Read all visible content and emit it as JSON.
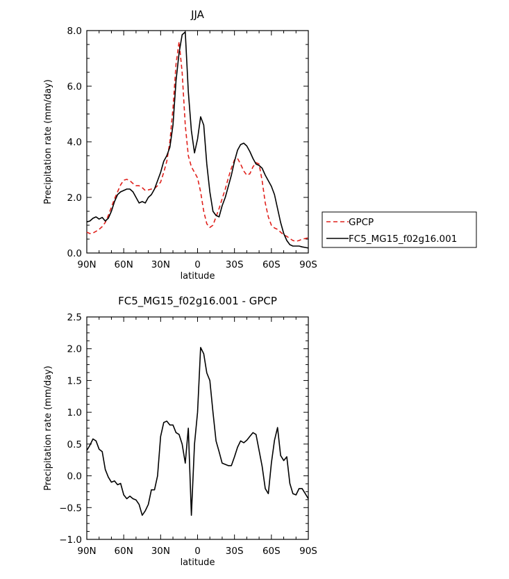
{
  "colors": {
    "gpcp": "#e0201b",
    "model": "#000000",
    "frame": "#000000"
  },
  "chart_data": [
    {
      "type": "line",
      "title": "JJA",
      "xlabel": "latitude",
      "ylabel": "Precipitation rate (mm/day)",
      "xlim": [
        90,
        -90
      ],
      "ylim": [
        0,
        8
      ],
      "xtick_values": [
        90,
        60,
        30,
        0,
        -30,
        -60,
        -90
      ],
      "xtick_labels": [
        "90N",
        "60N",
        "30N",
        "0",
        "30S",
        "60S",
        "90S"
      ],
      "ytick_values": [
        0,
        2,
        4,
        6,
        8
      ],
      "ytick_labels": [
        "0.0",
        "2.0",
        "4.0",
        "6.0",
        "8.0"
      ],
      "legend": {
        "placement": "right-middle",
        "entries": [
          "GPCP",
          "FC5_MG15_f02g16.001"
        ]
      },
      "series": [
        {
          "name": "GPCP",
          "style": "dashed",
          "color": "#e0201b",
          "x": [
            90,
            87.5,
            85,
            82.5,
            80,
            77.5,
            75,
            72.5,
            70,
            67.5,
            65,
            62.5,
            60,
            57.5,
            55,
            52.5,
            50,
            47.5,
            45,
            42.5,
            40,
            37.5,
            35,
            32.5,
            30,
            27.5,
            25,
            22.5,
            20,
            17.5,
            15,
            12.5,
            10,
            7.5,
            5,
            2.5,
            0,
            -2.5,
            -5,
            -7.5,
            -10,
            -12.5,
            -15,
            -17.5,
            -20,
            -22.5,
            -25,
            -27.5,
            -30,
            -32.5,
            -35,
            -37.5,
            -40,
            -42.5,
            -45,
            -47.5,
            -50,
            -52.5,
            -55,
            -57.5,
            -60,
            -62.5,
            -65,
            -67.5,
            -70,
            -72.5,
            -75,
            -77.5,
            -80,
            -82.5,
            -85,
            -87.5,
            -90
          ],
          "values": [
            0.75,
            0.7,
            0.72,
            0.78,
            0.85,
            0.95,
            1.1,
            1.35,
            1.65,
            1.95,
            2.2,
            2.45,
            2.62,
            2.65,
            2.6,
            2.5,
            2.42,
            2.42,
            2.35,
            2.25,
            2.27,
            2.3,
            2.32,
            2.42,
            2.55,
            2.9,
            3.3,
            4.0,
            5.2,
            6.8,
            7.6,
            6.5,
            4.6,
            3.5,
            3.1,
            2.9,
            2.7,
            2.2,
            1.5,
            1.05,
            0.92,
            1.0,
            1.3,
            1.6,
            1.95,
            2.3,
            2.7,
            3.05,
            3.35,
            3.4,
            3.2,
            2.95,
            2.8,
            2.85,
            3.1,
            3.25,
            3.2,
            2.6,
            1.8,
            1.3,
            1.0,
            0.9,
            0.85,
            0.75,
            0.65,
            0.6,
            0.52,
            0.45,
            0.42,
            0.45,
            0.5,
            0.52,
            0.55
          ]
        },
        {
          "name": "FC5_MG15_f02g16.001",
          "style": "solid",
          "color": "#000000",
          "x": [
            90,
            87.5,
            85,
            82.5,
            80,
            77.5,
            75,
            72.5,
            70,
            67.5,
            65,
            62.5,
            60,
            57.5,
            55,
            52.5,
            50,
            47.5,
            45,
            42.5,
            40,
            37.5,
            35,
            32.5,
            30,
            27.5,
            25,
            22.5,
            20,
            17.5,
            15,
            12.5,
            10,
            7.5,
            5,
            2.5,
            0,
            -2.5,
            -5,
            -7.5,
            -10,
            -12.5,
            -15,
            -17.5,
            -20,
            -22.5,
            -25,
            -27.5,
            -30,
            -32.5,
            -35,
            -37.5,
            -40,
            -42.5,
            -45,
            -47.5,
            -50,
            -52.5,
            -55,
            -57.5,
            -60,
            -62.5,
            -65,
            -67.5,
            -70,
            -72.5,
            -75,
            -77.5,
            -80,
            -82.5,
            -85,
            -87.5,
            -90
          ],
          "values": [
            1.12,
            1.15,
            1.25,
            1.3,
            1.22,
            1.28,
            1.15,
            1.25,
            1.5,
            1.85,
            2.1,
            2.2,
            2.25,
            2.3,
            2.3,
            2.2,
            2.0,
            1.8,
            1.85,
            1.8,
            2.0,
            2.1,
            2.3,
            2.6,
            2.9,
            3.3,
            3.5,
            3.8,
            4.6,
            6.2,
            7.2,
            7.85,
            7.95,
            5.8,
            4.4,
            3.6,
            4.1,
            4.9,
            4.6,
            3.2,
            2.2,
            1.5,
            1.35,
            1.3,
            1.7,
            2.0,
            2.4,
            2.8,
            3.3,
            3.7,
            3.9,
            3.95,
            3.85,
            3.65,
            3.4,
            3.2,
            3.15,
            3.05,
            2.8,
            2.6,
            2.4,
            2.1,
            1.6,
            1.1,
            0.7,
            0.45,
            0.3,
            0.25,
            0.25,
            0.25,
            0.22,
            0.2,
            0.18
          ]
        }
      ]
    },
    {
      "type": "line",
      "title": "FC5_MG15_f02g16.001 - GPCP",
      "xlabel": "latitude",
      "ylabel": "Precipitation rate (mm/day)",
      "xlim": [
        90,
        -90
      ],
      "ylim": [
        -1,
        2.5
      ],
      "xtick_values": [
        90,
        60,
        30,
        0,
        -30,
        -60,
        -90
      ],
      "xtick_labels": [
        "90N",
        "60N",
        "30N",
        "0",
        "30S",
        "60S",
        "90S"
      ],
      "ytick_values": [
        -1,
        -0.5,
        0,
        0.5,
        1,
        1.5,
        2,
        2.5
      ],
      "ytick_labels": [
        "−1.0",
        "−0.5",
        "0.0",
        "0.5",
        "1.0",
        "1.5",
        "2.0",
        "2.5"
      ],
      "series": [
        {
          "name": "FC5_MG15_f02g16.001 - GPCP",
          "style": "solid",
          "color": "#000000",
          "x": [
            90,
            87.5,
            85,
            82.5,
            80,
            77.5,
            75,
            72.5,
            70,
            67.5,
            65,
            62.5,
            60,
            57.5,
            55,
            52.5,
            50,
            47.5,
            45,
            42.5,
            40,
            37.5,
            35,
            32.5,
            30,
            27.5,
            25,
            22.5,
            20,
            17.5,
            15,
            12.5,
            10,
            7.5,
            5,
            2.5,
            0,
            -2.5,
            -5,
            -7.5,
            -10,
            -12.5,
            -15,
            -17.5,
            -20,
            -22.5,
            -25,
            -27.5,
            -30,
            -32.5,
            -35,
            -37.5,
            -40,
            -42.5,
            -45,
            -47.5,
            -50,
            -52.5,
            -55,
            -57.5,
            -60,
            -62.5,
            -65,
            -67.5,
            -70,
            -72.5,
            -75,
            -77.5,
            -80,
            -82.5,
            -85,
            -87.5,
            -90
          ],
          "values": [
            0.4,
            0.48,
            0.58,
            0.55,
            0.42,
            0.38,
            0.1,
            -0.02,
            -0.1,
            -0.08,
            -0.14,
            -0.12,
            -0.3,
            -0.36,
            -0.32,
            -0.36,
            -0.38,
            -0.45,
            -0.62,
            -0.55,
            -0.45,
            -0.22,
            -0.22,
            0.0,
            0.62,
            0.84,
            0.86,
            0.8,
            0.8,
            0.68,
            0.65,
            0.5,
            0.2,
            0.75,
            -0.62,
            0.5,
            1.0,
            2.02,
            1.92,
            1.62,
            1.5,
            1.0,
            0.55,
            0.38,
            0.2,
            0.18,
            0.16,
            0.16,
            0.3,
            0.45,
            0.55,
            0.52,
            0.56,
            0.62,
            0.68,
            0.65,
            0.4,
            0.15,
            -0.2,
            -0.28,
            0.2,
            0.56,
            0.76,
            0.32,
            0.24,
            0.3,
            -0.12,
            -0.28,
            -0.3,
            -0.2,
            -0.2,
            -0.28,
            -0.36
          ]
        }
      ]
    }
  ]
}
